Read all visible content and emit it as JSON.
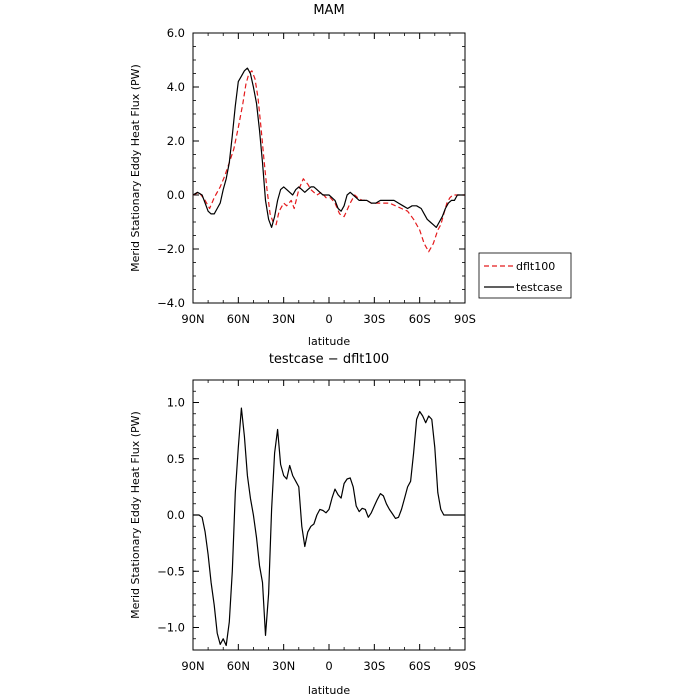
{
  "chart_data": [
    {
      "type": "line",
      "title": "MAM",
      "xlabel": "latitude",
      "ylabel": "Merid Stationary Eddy Heat Flux (PW)",
      "xlim": [
        90,
        -90
      ],
      "ylim": [
        -4.0,
        6.0
      ],
      "x_ticks": [
        90,
        60,
        30,
        0,
        -30,
        -60,
        -90
      ],
      "x_tick_labels": [
        "90N",
        "60N",
        "30N",
        "0",
        "30S",
        "60S",
        "90S"
      ],
      "y_ticks": [
        -4.0,
        -2.0,
        0.0,
        2.0,
        4.0,
        6.0
      ],
      "y_tick_labels": [
        "−4.0",
        "−2.0",
        "0.0",
        "2.0",
        "4.0",
        "6.0"
      ],
      "legend": {
        "position": "right",
        "entries": [
          "dflt100",
          "testcase"
        ]
      },
      "series": [
        {
          "name": "dflt100",
          "color": "#e41a1c",
          "style": "dashed",
          "x": [
            90,
            86,
            82,
            79,
            76,
            72,
            69,
            66,
            63,
            60,
            57,
            55,
            53,
            51,
            49,
            47,
            45,
            43,
            41,
            39,
            37,
            35,
            33,
            30,
            28,
            25,
            23,
            20,
            17,
            14,
            12,
            10,
            8,
            5,
            2,
            -1,
            -4,
            -7,
            -10,
            -14,
            -17,
            -19,
            -22,
            -25,
            -28,
            -32,
            -36,
            -40,
            -44,
            -48,
            -52,
            -56,
            -60,
            -63,
            -66,
            -69,
            -72,
            -74,
            -76,
            -78,
            -80,
            -82,
            -84,
            -86,
            -88,
            -90
          ],
          "y": [
            0.0,
            0.1,
            -0.2,
            -0.5,
            -0.1,
            0.3,
            0.7,
            1.2,
            1.7,
            2.5,
            3.4,
            4.1,
            4.5,
            4.6,
            4.3,
            3.6,
            2.5,
            1.3,
            0.2,
            -0.7,
            -1.0,
            -1.1,
            -0.6,
            -0.3,
            -0.4,
            -0.2,
            -0.5,
            0.2,
            0.6,
            0.4,
            0.2,
            0.1,
            0.0,
            0.1,
            -0.1,
            -0.1,
            -0.3,
            -0.7,
            -0.8,
            -0.3,
            0.0,
            -0.1,
            -0.2,
            -0.2,
            -0.3,
            -0.3,
            -0.3,
            -0.3,
            -0.4,
            -0.5,
            -0.6,
            -0.9,
            -1.3,
            -1.8,
            -2.1,
            -1.8,
            -1.3,
            -1.1,
            -0.7,
            -0.3,
            -0.1,
            0.0,
            0.0,
            0.0,
            0.0,
            0.0
          ]
        },
        {
          "name": "testcase",
          "color": "#000000",
          "style": "solid",
          "x": [
            90,
            87,
            84,
            82,
            80,
            78,
            76,
            74,
            72,
            70,
            68,
            66,
            64,
            62,
            60,
            58,
            56,
            54,
            52,
            50,
            48,
            46,
            44,
            42,
            40,
            38,
            36,
            34,
            32,
            30,
            28,
            26,
            24,
            22,
            20,
            18,
            16,
            14,
            12,
            10,
            8,
            6,
            4,
            2,
            0,
            -2,
            -4,
            -6,
            -8,
            -10,
            -12,
            -14,
            -16,
            -18,
            -20,
            -22,
            -25,
            -28,
            -31,
            -34,
            -37,
            -40,
            -43,
            -46,
            -49,
            -52,
            -55,
            -58,
            -61,
            -63,
            -65,
            -67,
            -69,
            -71,
            -73,
            -75,
            -77,
            -79,
            -81,
            -83,
            -85,
            -87,
            -89,
            -90
          ],
          "y": [
            0.0,
            0.1,
            0.0,
            -0.3,
            -0.6,
            -0.7,
            -0.7,
            -0.5,
            -0.3,
            0.2,
            0.6,
            1.2,
            2.2,
            3.3,
            4.2,
            4.4,
            4.6,
            4.7,
            4.5,
            4.0,
            3.4,
            2.4,
            1.2,
            -0.2,
            -0.9,
            -1.2,
            -0.8,
            -0.2,
            0.2,
            0.3,
            0.2,
            0.1,
            0.0,
            0.2,
            0.3,
            0.2,
            0.1,
            0.2,
            0.3,
            0.3,
            0.2,
            0.1,
            0.0,
            0.0,
            0.0,
            -0.1,
            -0.2,
            -0.5,
            -0.6,
            -0.4,
            0.0,
            0.1,
            0.0,
            -0.1,
            -0.2,
            -0.2,
            -0.2,
            -0.3,
            -0.3,
            -0.2,
            -0.2,
            -0.2,
            -0.2,
            -0.3,
            -0.4,
            -0.5,
            -0.4,
            -0.4,
            -0.5,
            -0.7,
            -0.9,
            -1.0,
            -1.1,
            -1.2,
            -1.0,
            -0.8,
            -0.5,
            -0.3,
            -0.2,
            -0.2,
            0.0,
            0.0,
            0.0,
            0.0
          ]
        }
      ]
    },
    {
      "type": "line",
      "title": "testcase − dflt100",
      "xlabel": "latitude",
      "ylabel": "Merid Stationary Eddy Heat Flux (PW)",
      "xlim": [
        90,
        -90
      ],
      "ylim": [
        -1.2,
        1.2
      ],
      "x_ticks": [
        90,
        60,
        30,
        0,
        -30,
        -60,
        -90
      ],
      "x_tick_labels": [
        "90N",
        "60N",
        "30N",
        "0",
        "30S",
        "60S",
        "90S"
      ],
      "y_ticks": [
        -1.0,
        -0.5,
        0.0,
        0.5,
        1.0
      ],
      "y_tick_labels": [
        "−1.0",
        "−0.5",
        "0.0",
        "0.5",
        "1.0"
      ],
      "series": [
        {
          "color": "#000000",
          "style": "solid",
          "x": [
            90,
            88,
            86,
            84,
            82,
            80,
            78,
            76,
            74,
            72,
            70,
            68,
            66,
            64,
            62,
            60,
            58,
            56,
            54,
            52,
            50,
            48,
            46,
            44,
            42,
            40,
            38,
            36,
            34,
            32,
            30,
            28,
            26,
            24,
            22,
            20,
            18,
            16,
            14,
            12,
            10,
            8,
            6,
            4,
            2,
            0,
            -2,
            -4,
            -6,
            -8,
            -10,
            -12,
            -14,
            -16,
            -18,
            -20,
            -22,
            -24,
            -26,
            -28,
            -30,
            -32,
            -34,
            -36,
            -38,
            -40,
            -42,
            -44,
            -46,
            -48,
            -50,
            -52,
            -54,
            -56,
            -58,
            -60,
            -62,
            -64,
            -66,
            -68,
            -70,
            -72,
            -74,
            -76,
            -78,
            -80,
            -82,
            -84,
            -86,
            -88,
            -90
          ],
          "y": [
            0.0,
            0.0,
            0.0,
            -0.02,
            -0.15,
            -0.35,
            -0.6,
            -0.8,
            -1.05,
            -1.15,
            -1.1,
            -1.16,
            -0.95,
            -0.5,
            0.2,
            0.6,
            0.95,
            0.7,
            0.35,
            0.15,
            0.0,
            -0.2,
            -0.45,
            -0.6,
            -1.07,
            -0.7,
            0.05,
            0.55,
            0.76,
            0.45,
            0.35,
            0.32,
            0.44,
            0.35,
            0.3,
            0.25,
            -0.1,
            -0.28,
            -0.15,
            -0.1,
            -0.08,
            0.0,
            0.05,
            0.04,
            0.02,
            0.05,
            0.15,
            0.23,
            0.18,
            0.15,
            0.28,
            0.32,
            0.33,
            0.25,
            0.08,
            0.03,
            0.06,
            0.05,
            -0.02,
            0.02,
            0.08,
            0.14,
            0.19,
            0.17,
            0.1,
            0.05,
            0.01,
            -0.03,
            -0.02,
            0.05,
            0.15,
            0.25,
            0.3,
            0.55,
            0.85,
            0.92,
            0.88,
            0.82,
            0.88,
            0.85,
            0.6,
            0.2,
            0.05,
            0.0,
            0.0,
            0.0,
            0.0,
            0.0,
            0.0,
            0.0,
            0.0
          ]
        }
      ]
    }
  ]
}
